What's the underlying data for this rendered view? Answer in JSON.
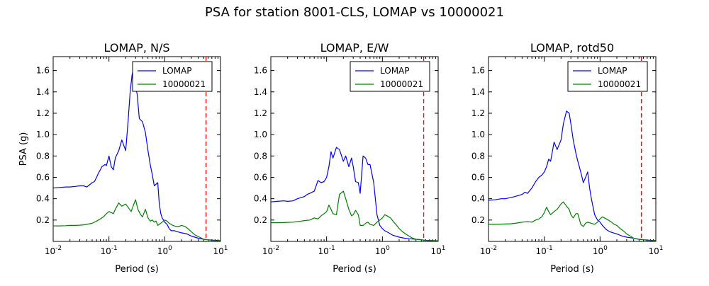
{
  "figure": {
    "title": "PSA for station 8001-CLS, LOMAP vs 10000021"
  },
  "chart_data": [
    {
      "type": "line",
      "title": "LOMAP, N/S",
      "xlabel": "Period (s)",
      "ylabel": "PSA (g)",
      "xscale": "log",
      "xlim": [
        0.01,
        10
      ],
      "ylim": [
        0,
        1.73
      ],
      "xticks": [
        0.01,
        0.1,
        1,
        10
      ],
      "xtick_labels": [
        [
          "10",
          "-2"
        ],
        [
          "10",
          "-1"
        ],
        [
          "10",
          "0"
        ],
        [
          "10",
          "1"
        ]
      ],
      "yticks": [
        0.2,
        0.4,
        0.6,
        0.8,
        1.0,
        1.2,
        1.4,
        1.6
      ],
      "ytick_labels": [
        "0.2",
        "0.4",
        "0.6",
        "0.8",
        "1.0",
        "1.2",
        "1.4",
        "1.6"
      ],
      "grid": false,
      "legend_position": "top-right",
      "vline": {
        "x": 5.5,
        "color": "#ff0000",
        "style": "dashed"
      },
      "series": [
        {
          "name": "LOMAP",
          "color": "#0000ff",
          "x": [
            0.01,
            0.013,
            0.017,
            0.02,
            0.025,
            0.03,
            0.035,
            0.04,
            0.045,
            0.05,
            0.055,
            0.06,
            0.065,
            0.07,
            0.075,
            0.08,
            0.085,
            0.09,
            0.1,
            0.11,
            0.12,
            0.13,
            0.15,
            0.17,
            0.2,
            0.22,
            0.24,
            0.26,
            0.28,
            0.3,
            0.32,
            0.35,
            0.4,
            0.45,
            0.5,
            0.55,
            0.6,
            0.65,
            0.75,
            0.8,
            0.85,
            0.9,
            1.0,
            1.1,
            1.2,
            1.3,
            1.5,
            1.7,
            2.0,
            2.5,
            3.0,
            4.0,
            5.0,
            6.0,
            8.0,
            10.0
          ],
          "y": [
            0.5,
            0.505,
            0.51,
            0.51,
            0.515,
            0.52,
            0.52,
            0.51,
            0.53,
            0.55,
            0.56,
            0.6,
            0.64,
            0.67,
            0.7,
            0.71,
            0.72,
            0.71,
            0.8,
            0.7,
            0.67,
            0.78,
            0.85,
            0.95,
            0.85,
            1.12,
            1.4,
            1.56,
            1.64,
            1.45,
            1.38,
            1.15,
            1.12,
            1.02,
            0.85,
            0.72,
            0.62,
            0.52,
            0.55,
            0.35,
            0.26,
            0.22,
            0.18,
            0.16,
            0.12,
            0.1,
            0.1,
            0.09,
            0.08,
            0.07,
            0.05,
            0.03,
            0.02,
            0.015,
            0.01,
            0.008
          ]
        },
        {
          "name": "10000021",
          "color": "#008000",
          "x": [
            0.01,
            0.013,
            0.017,
            0.02,
            0.025,
            0.03,
            0.035,
            0.04,
            0.05,
            0.06,
            0.07,
            0.08,
            0.09,
            0.1,
            0.11,
            0.12,
            0.13,
            0.15,
            0.17,
            0.2,
            0.22,
            0.25,
            0.28,
            0.3,
            0.33,
            0.37,
            0.4,
            0.45,
            0.5,
            0.55,
            0.6,
            0.65,
            0.7,
            0.75,
            0.8,
            0.9,
            1.0,
            1.1,
            1.2,
            1.4,
            1.6,
            1.8,
            2.0,
            2.3,
            2.6,
            3.0,
            3.5,
            4.0,
            5.0,
            6.0,
            7.0,
            8.0,
            10.0
          ],
          "y": [
            0.145,
            0.145,
            0.147,
            0.15,
            0.15,
            0.152,
            0.155,
            0.16,
            0.17,
            0.19,
            0.21,
            0.23,
            0.26,
            0.28,
            0.27,
            0.26,
            0.3,
            0.36,
            0.33,
            0.35,
            0.32,
            0.28,
            0.35,
            0.39,
            0.3,
            0.25,
            0.23,
            0.3,
            0.22,
            0.19,
            0.2,
            0.18,
            0.19,
            0.15,
            0.16,
            0.18,
            0.2,
            0.19,
            0.17,
            0.15,
            0.14,
            0.14,
            0.15,
            0.14,
            0.12,
            0.09,
            0.06,
            0.045,
            0.02,
            0.015,
            0.01,
            0.008,
            0.006
          ]
        }
      ]
    },
    {
      "type": "line",
      "title": "LOMAP, E/W",
      "xlabel": "Period (s)",
      "ylabel": "",
      "xscale": "log",
      "xlim": [
        0.01,
        10
      ],
      "ylim": [
        0,
        1.73
      ],
      "xticks": [
        0.01,
        0.1,
        1,
        10
      ],
      "xtick_labels": [
        [
          "10",
          "-2"
        ],
        [
          "10",
          "-1"
        ],
        [
          "10",
          "0"
        ],
        [
          "10",
          "1"
        ]
      ],
      "yticks": [
        0.2,
        0.4,
        0.6,
        0.8,
        1.0,
        1.2,
        1.4,
        1.6
      ],
      "ytick_labels": [
        "0.2",
        "0.4",
        "0.6",
        "0.8",
        "1.0",
        "1.2",
        "1.4",
        "1.6"
      ],
      "grid": false,
      "legend_position": "top-right",
      "vline": {
        "x": 5.5,
        "color": "#ff0000",
        "style": "dashed"
      },
      "series": [
        {
          "name": "LOMAP",
          "color": "#0000ff",
          "x": [
            0.01,
            0.013,
            0.017,
            0.02,
            0.025,
            0.03,
            0.035,
            0.04,
            0.045,
            0.05,
            0.06,
            0.07,
            0.08,
            0.09,
            0.1,
            0.11,
            0.12,
            0.13,
            0.15,
            0.17,
            0.2,
            0.22,
            0.25,
            0.28,
            0.3,
            0.33,
            0.37,
            0.4,
            0.45,
            0.5,
            0.55,
            0.6,
            0.7,
            0.8,
            0.9,
            1.0,
            1.1,
            1.3,
            1.5,
            2.0,
            2.5,
            3.0,
            4.0,
            5.0,
            6.0,
            8.0,
            10.0
          ],
          "y": [
            0.37,
            0.375,
            0.38,
            0.375,
            0.38,
            0.4,
            0.41,
            0.42,
            0.44,
            0.45,
            0.47,
            0.57,
            0.55,
            0.56,
            0.6,
            0.7,
            0.84,
            0.78,
            0.88,
            0.86,
            0.75,
            0.8,
            0.7,
            0.78,
            0.7,
            0.56,
            0.55,
            0.45,
            0.8,
            0.78,
            0.72,
            0.72,
            0.55,
            0.25,
            0.15,
            0.12,
            0.1,
            0.08,
            0.06,
            0.04,
            0.03,
            0.025,
            0.02,
            0.015,
            0.01,
            0.008,
            0.006
          ]
        },
        {
          "name": "10000021",
          "color": "#008000",
          "x": [
            0.01,
            0.013,
            0.017,
            0.02,
            0.025,
            0.03,
            0.035,
            0.04,
            0.05,
            0.06,
            0.07,
            0.08,
            0.09,
            0.1,
            0.11,
            0.12,
            0.13,
            0.15,
            0.17,
            0.2,
            0.22,
            0.25,
            0.28,
            0.3,
            0.33,
            0.37,
            0.4,
            0.45,
            0.5,
            0.55,
            0.6,
            0.7,
            0.8,
            0.9,
            1.0,
            1.1,
            1.2,
            1.4,
            1.6,
            1.8,
            2.0,
            2.3,
            2.6,
            3.0,
            3.5,
            4.0,
            5.0,
            6.0,
            7.0,
            8.0,
            10.0
          ],
          "y": [
            0.175,
            0.175,
            0.176,
            0.178,
            0.18,
            0.185,
            0.19,
            0.195,
            0.2,
            0.22,
            0.21,
            0.24,
            0.26,
            0.28,
            0.34,
            0.3,
            0.26,
            0.25,
            0.44,
            0.47,
            0.4,
            0.3,
            0.24,
            0.25,
            0.29,
            0.25,
            0.15,
            0.15,
            0.17,
            0.18,
            0.16,
            0.15,
            0.18,
            0.2,
            0.22,
            0.25,
            0.24,
            0.22,
            0.18,
            0.15,
            0.12,
            0.09,
            0.07,
            0.05,
            0.03,
            0.02,
            0.015,
            0.01,
            0.008,
            0.006,
            0.005
          ]
        }
      ]
    },
    {
      "type": "line",
      "title": "LOMAP, rotd50",
      "xlabel": "Period (s)",
      "ylabel": "",
      "xscale": "log",
      "xlim": [
        0.01,
        10
      ],
      "ylim": [
        0,
        1.73
      ],
      "xticks": [
        0.01,
        0.1,
        1,
        10
      ],
      "xtick_labels": [
        [
          "10",
          "-2"
        ],
        [
          "10",
          "-1"
        ],
        [
          "10",
          "0"
        ],
        [
          "10",
          "1"
        ]
      ],
      "yticks": [
        0.2,
        0.4,
        0.6,
        0.8,
        1.0,
        1.2,
        1.4,
        1.6
      ],
      "ytick_labels": [
        "0.2",
        "0.4",
        "0.6",
        "0.8",
        "1.0",
        "1.2",
        "1.4",
        "1.6"
      ],
      "grid": false,
      "legend_position": "top-right",
      "vline": {
        "x": 5.5,
        "color": "#ff0000",
        "style": "dashed"
      },
      "series": [
        {
          "name": "LOMAP",
          "color": "#0000ff",
          "x": [
            0.01,
            0.013,
            0.017,
            0.02,
            0.025,
            0.03,
            0.035,
            0.04,
            0.045,
            0.05,
            0.06,
            0.07,
            0.08,
            0.09,
            0.1,
            0.11,
            0.12,
            0.13,
            0.15,
            0.17,
            0.2,
            0.22,
            0.25,
            0.28,
            0.3,
            0.33,
            0.37,
            0.4,
            0.45,
            0.5,
            0.55,
            0.6,
            0.65,
            0.7,
            0.8,
            0.9,
            1.0,
            1.1,
            1.3,
            1.5,
            2.0,
            2.5,
            3.0,
            4.0,
            5.0,
            6.0,
            8.0,
            10.0
          ],
          "y": [
            0.385,
            0.39,
            0.4,
            0.4,
            0.41,
            0.42,
            0.43,
            0.44,
            0.46,
            0.45,
            0.5,
            0.56,
            0.6,
            0.62,
            0.65,
            0.7,
            0.77,
            0.75,
            0.93,
            0.86,
            0.95,
            1.1,
            1.22,
            1.2,
            1.1,
            0.95,
            0.82,
            0.75,
            0.65,
            0.55,
            0.6,
            0.65,
            0.5,
            0.4,
            0.25,
            0.2,
            0.18,
            0.15,
            0.11,
            0.09,
            0.07,
            0.05,
            0.04,
            0.03,
            0.02,
            0.015,
            0.01,
            0.008
          ]
        },
        {
          "name": "10000021",
          "color": "#008000",
          "x": [
            0.01,
            0.013,
            0.017,
            0.02,
            0.025,
            0.03,
            0.035,
            0.04,
            0.05,
            0.06,
            0.07,
            0.08,
            0.09,
            0.1,
            0.11,
            0.12,
            0.13,
            0.15,
            0.17,
            0.2,
            0.22,
            0.25,
            0.28,
            0.3,
            0.33,
            0.37,
            0.4,
            0.45,
            0.5,
            0.55,
            0.6,
            0.7,
            0.8,
            0.9,
            1.0,
            1.1,
            1.2,
            1.4,
            1.6,
            1.8,
            2.0,
            2.3,
            2.6,
            3.0,
            3.5,
            4.0,
            5.0,
            6.0,
            7.0,
            8.0,
            10.0
          ],
          "y": [
            0.16,
            0.16,
            0.162,
            0.163,
            0.165,
            0.17,
            0.175,
            0.18,
            0.185,
            0.18,
            0.2,
            0.21,
            0.23,
            0.27,
            0.32,
            0.28,
            0.25,
            0.28,
            0.3,
            0.35,
            0.37,
            0.33,
            0.3,
            0.25,
            0.22,
            0.26,
            0.26,
            0.16,
            0.14,
            0.17,
            0.18,
            0.17,
            0.16,
            0.18,
            0.21,
            0.23,
            0.22,
            0.2,
            0.18,
            0.16,
            0.15,
            0.12,
            0.1,
            0.07,
            0.05,
            0.03,
            0.02,
            0.015,
            0.01,
            0.008,
            0.006
          ]
        }
      ]
    }
  ]
}
